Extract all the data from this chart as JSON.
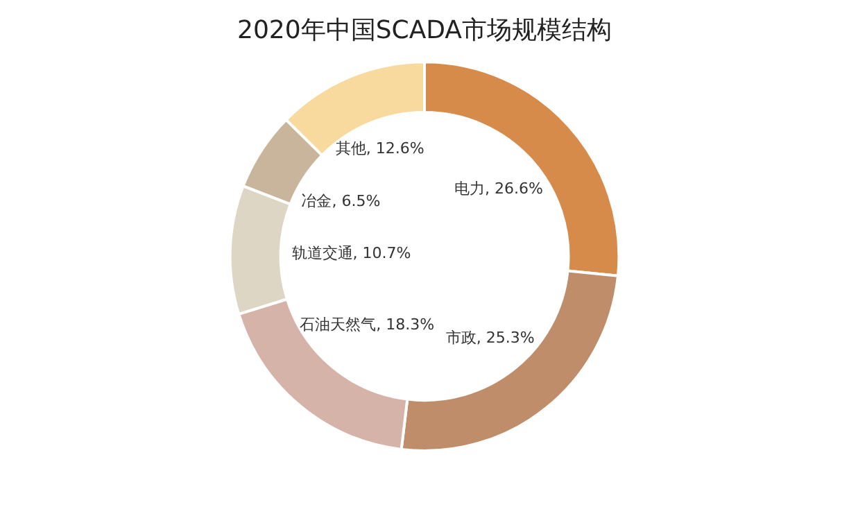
{
  "chart_data": {
    "type": "donut",
    "title": "2020年中国SCADA市场规模结构",
    "categories": [
      "电力",
      "市政",
      "石油天然气",
      "轨道交通",
      "冶金",
      "其他"
    ],
    "values": [
      26.6,
      25.3,
      18.3,
      10.7,
      6.5,
      12.6
    ],
    "value_labels": [
      "26.6%",
      "25.3%",
      "18.3%",
      "10.7%",
      "6.5%",
      "12.6%"
    ],
    "colors": [
      "#d68b4b",
      "#bf8d69",
      "#d5b3a9",
      "#ddd6c4",
      "#c9b59c",
      "#f8da9f"
    ],
    "legend": false
  }
}
